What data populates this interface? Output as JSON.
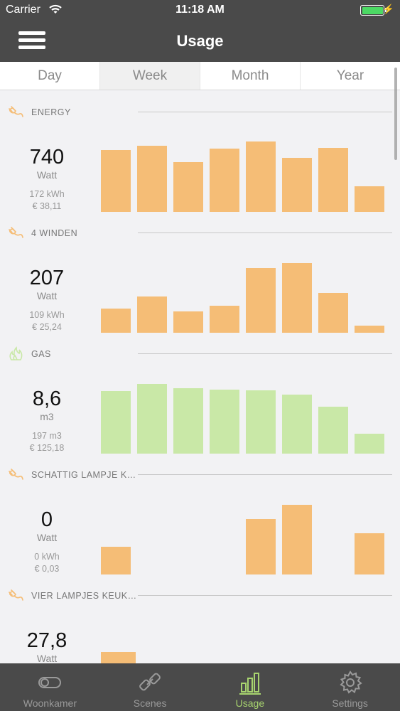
{
  "status_bar": {
    "carrier": "Carrier",
    "time": "11:18 AM"
  },
  "nav": {
    "title": "Usage"
  },
  "segments": [
    {
      "label": "Day",
      "active": false
    },
    {
      "label": "Week",
      "active": true
    },
    {
      "label": "Month",
      "active": false
    },
    {
      "label": "Year",
      "active": false
    }
  ],
  "devices": [
    {
      "name": "ENERGY",
      "icon": "plug-icon",
      "value": "740",
      "unit": "Watt",
      "total": "172 kWh",
      "cost": "€ 38,11",
      "color": "#f5bd76",
      "bars": [
        0.82,
        0.88,
        0.66,
        0.84,
        0.93,
        0.72,
        0.85,
        0.34
      ]
    },
    {
      "name": "4 WINDEN",
      "icon": "plug-icon",
      "value": "207",
      "unit": "Watt",
      "total": "109 kWh",
      "cost": "€ 25,24",
      "color": "#f5bd76",
      "bars": [
        0.32,
        0.48,
        0.28,
        0.36,
        0.86,
        0.92,
        0.53,
        0.09
      ]
    },
    {
      "name": "GAS",
      "icon": "flame-icon",
      "value": "8,6",
      "unit": "m3",
      "total": "197 m3",
      "cost": "€ 125,18",
      "color": "#c9e8a7",
      "bars": [
        0.83,
        0.92,
        0.87,
        0.85,
        0.84,
        0.78,
        0.62,
        0.26
      ]
    },
    {
      "name": "SCHATTIG LAMPJE K…",
      "icon": "plug-icon",
      "value": "0",
      "unit": "Watt",
      "total": "0 kWh",
      "cost": "€ 0,03",
      "color": "#f5bd76",
      "bars": [
        0.37,
        0,
        0,
        0,
        0.74,
        0.92,
        0,
        0.55
      ]
    },
    {
      "name": "VIER LAMPJES KEUK…",
      "icon": "plug-icon",
      "value": "27,8",
      "unit": "Watt",
      "total": "",
      "cost": "",
      "color": "#f5bd76",
      "bars": [
        0.58,
        0,
        0,
        0,
        0,
        0,
        0,
        0
      ],
      "bar_width_wide": true
    }
  ],
  "tabs": [
    {
      "label": "Woonkamer",
      "icon": "toggle-switch-icon",
      "active": false
    },
    {
      "label": "Scenes",
      "icon": "link-icon",
      "active": false
    },
    {
      "label": "Usage",
      "icon": "bar-chart-icon",
      "active": true
    },
    {
      "label": "Settings",
      "icon": "gear-icon",
      "active": false
    }
  ],
  "colors": {
    "bar_energy": "#f5bd76",
    "bar_gas": "#c9e8a7",
    "accent": "#a8d46f",
    "chrome": "#4a4a4a"
  }
}
